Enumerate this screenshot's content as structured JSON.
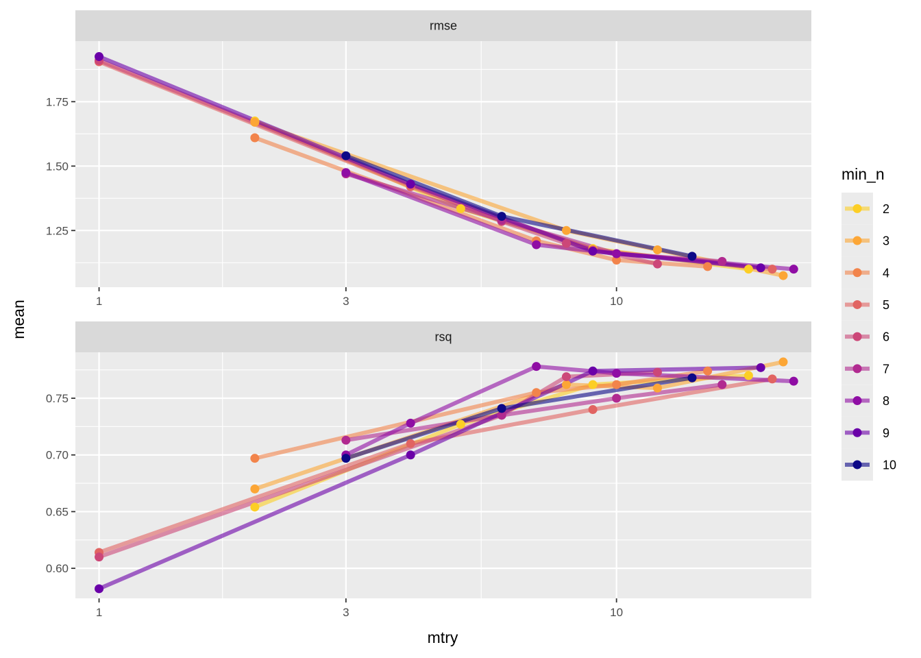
{
  "chart_data": {
    "type": "line",
    "xlabel": "mtry",
    "ylabel": "mean",
    "x_scale": "log10",
    "x_ticks": [
      1,
      3,
      10
    ],
    "x_minor_ticks": [
      1.732,
      5.477
    ],
    "xlim": [
      0.9,
      23.8
    ],
    "legend": {
      "title": "min_n",
      "position": "right"
    },
    "grid": true,
    "series_colors": {
      "2": "#fcce25",
      "3": "#fca636",
      "4": "#f2844b",
      "5": "#e16462",
      "6": "#cc4778",
      "7": "#b12a90",
      "8": "#8f0da4",
      "9": "#6a00a8",
      "10": "#0d0887"
    },
    "panels": [
      {
        "strip": "rmse",
        "ylim": [
          1.03,
          1.985
        ],
        "y_ticks": [
          1.25,
          1.5,
          1.75
        ],
        "y_tick_labels": [
          "1.25",
          "1.50",
          "1.75"
        ],
        "y_minor_ticks": [
          1.125,
          1.375,
          1.625,
          1.875
        ],
        "series": [
          {
            "name": "2",
            "points": [
              [
                2,
                1.675
              ],
              [
                5,
                1.335
              ],
              [
                9,
                1.18
              ],
              [
                18,
                1.1
              ]
            ]
          },
          {
            "name": "3",
            "points": [
              [
                2,
                1.67
              ],
              [
                8,
                1.25
              ],
              [
                12,
                1.175
              ],
              [
                21,
                1.075
              ]
            ]
          },
          {
            "name": "4",
            "points": [
              [
                2,
                1.61
              ],
              [
                7,
                1.21
              ],
              [
                10,
                1.135
              ],
              [
                15,
                1.11
              ]
            ]
          },
          {
            "name": "5",
            "points": [
              [
                1,
                1.905
              ],
              [
                4,
                1.42
              ],
              [
                9,
                1.175
              ],
              [
                20,
                1.1
              ]
            ]
          },
          {
            "name": "6",
            "points": [
              [
                1,
                1.91
              ],
              [
                6,
                1.285
              ],
              [
                8,
                1.2
              ],
              [
                12,
                1.12
              ]
            ]
          },
          {
            "name": "7",
            "points": [
              [
                3,
                1.47
              ],
              [
                6,
                1.29
              ],
              [
                10,
                1.16
              ],
              [
                16,
                1.13
              ]
            ]
          },
          {
            "name": "8",
            "points": [
              [
                3,
                1.475
              ],
              [
                7,
                1.195
              ],
              [
                10,
                1.16
              ],
              [
                22,
                1.1
              ]
            ]
          },
          {
            "name": "9",
            "points": [
              [
                1,
                1.925
              ],
              [
                4,
                1.43
              ],
              [
                9,
                1.17
              ],
              [
                19,
                1.105
              ]
            ]
          },
          {
            "name": "10",
            "points": [
              [
                3,
                1.54
              ],
              [
                6,
                1.305
              ],
              [
                14,
                1.15
              ]
            ]
          }
        ]
      },
      {
        "strip": "rsq",
        "ylim": [
          0.5735,
          0.7905
        ],
        "y_ticks": [
          0.6,
          0.65,
          0.7,
          0.75
        ],
        "y_tick_labels": [
          "0.60",
          "0.65",
          "0.70",
          "0.75"
        ],
        "y_minor_ticks": [
          0.625,
          0.675,
          0.725,
          0.775
        ],
        "series": [
          {
            "name": "2",
            "points": [
              [
                2,
                0.654
              ],
              [
                5,
                0.727
              ],
              [
                9,
                0.762
              ],
              [
                18,
                0.77
              ]
            ]
          },
          {
            "name": "3",
            "points": [
              [
                2,
                0.67
              ],
              [
                8,
                0.762
              ],
              [
                12,
                0.759
              ],
              [
                21,
                0.782
              ]
            ]
          },
          {
            "name": "4",
            "points": [
              [
                2,
                0.697
              ],
              [
                7,
                0.755
              ],
              [
                10,
                0.762
              ],
              [
                15,
                0.774
              ]
            ]
          },
          {
            "name": "5",
            "points": [
              [
                1,
                0.614
              ],
              [
                4,
                0.71
              ],
              [
                9,
                0.74
              ],
              [
                20,
                0.767
              ]
            ]
          },
          {
            "name": "6",
            "points": [
              [
                1,
                0.61
              ],
              [
                6,
                0.735
              ],
              [
                8,
                0.769
              ],
              [
                12,
                0.773
              ]
            ]
          },
          {
            "name": "7",
            "points": [
              [
                3,
                0.713
              ],
              [
                6,
                0.735
              ],
              [
                10,
                0.75
              ],
              [
                16,
                0.762
              ]
            ]
          },
          {
            "name": "8",
            "points": [
              [
                3,
                0.7
              ],
              [
                4,
                0.728
              ],
              [
                7,
                0.778
              ],
              [
                10,
                0.772
              ],
              [
                22,
                0.765
              ]
            ]
          },
          {
            "name": "9",
            "points": [
              [
                1,
                0.582
              ],
              [
                4,
                0.7
              ],
              [
                9,
                0.774
              ],
              [
                19,
                0.777
              ]
            ]
          },
          {
            "name": "10",
            "points": [
              [
                3,
                0.697
              ],
              [
                6,
                0.741
              ],
              [
                14,
                0.768
              ]
            ]
          }
        ]
      }
    ]
  }
}
